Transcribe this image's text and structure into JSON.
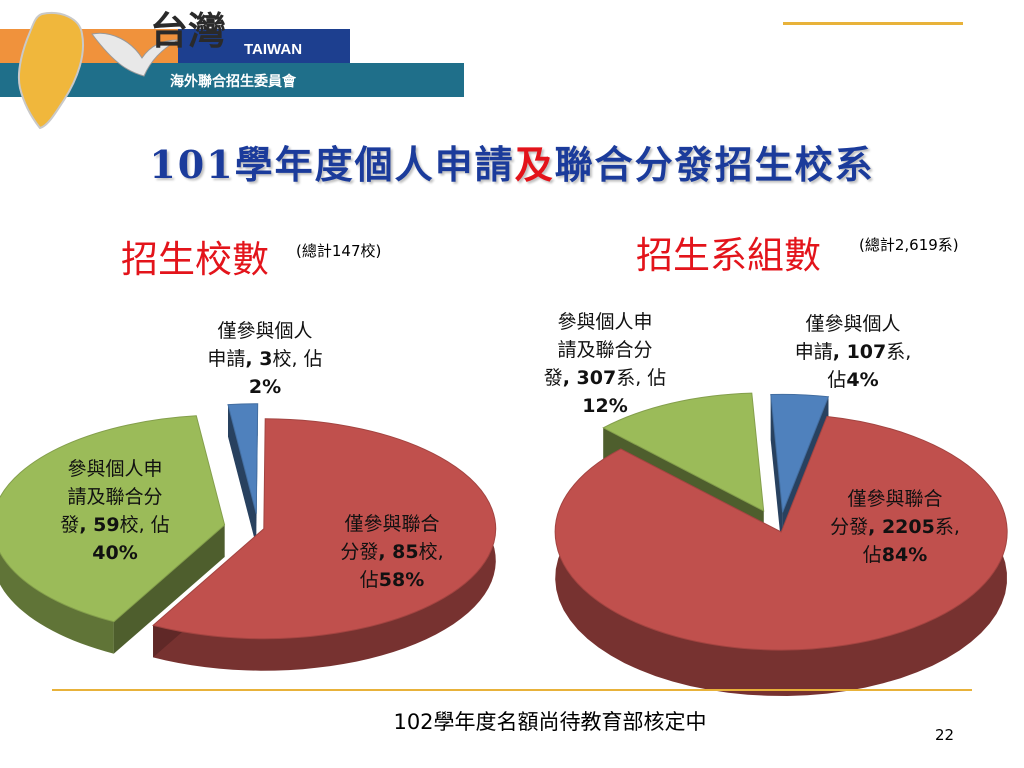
{
  "logo": {
    "brand_script": "台灣",
    "brand_en": "TAIWAN",
    "org_name": "海外聯合招生委員會"
  },
  "title": {
    "part1": "101學年度個人申請",
    "part2": "及",
    "part3": "聯合分發招生校系"
  },
  "colors": {
    "blue": "#4f81bd",
    "red": "#c0504d",
    "green": "#9bbb59",
    "title": "#1b3b9b",
    "accent": "#e3141b",
    "rule": "#e8b23a"
  },
  "chart_data": [
    {
      "type": "pie",
      "title": "招生校數",
      "subtitle": "(總計147校)",
      "slices": [
        {
          "label": "僅參與個人申請",
          "count": "3",
          "unit": "校",
          "percent": "2%",
          "value": 3,
          "color": "#4f81bd"
        },
        {
          "label": "僅參與聯合分發",
          "count": "85",
          "unit": "校",
          "percent": "58%",
          "value": 85,
          "color": "#c0504d"
        },
        {
          "label": "參與個人申請及聯合分發",
          "count": "59",
          "unit": "校",
          "percent": "40%",
          "value": 59,
          "color": "#9bbb59"
        }
      ]
    },
    {
      "type": "pie",
      "title": "招生系組數",
      "subtitle": "(總計2,619系)",
      "slices": [
        {
          "label": "僅參與個人申請",
          "count": "107",
          "unit": "系",
          "percent": "4%",
          "value": 107,
          "color": "#4f81bd"
        },
        {
          "label": "僅參與聯合分發",
          "count": "2205",
          "unit": "系",
          "percent": "84%",
          "value": 2205,
          "color": "#c0504d"
        },
        {
          "label": "參與個人申請及聯合分發",
          "count": "307",
          "unit": "系",
          "percent": "12%",
          "value": 307,
          "color": "#9bbb59"
        }
      ]
    }
  ],
  "labels": {
    "left_blue": {
      "line1": "僅參與個人",
      "line2a": "申請",
      "line2b": "校, 佔",
      "line3": "2%"
    },
    "left_red": {
      "line1": "僅參與聯合",
      "line2a": "分發",
      "line2b": "校,",
      "line3a": "佔"
    },
    "left_green": {
      "line1": "參與個人申",
      "line2": "請及聯合分",
      "line3a": "發",
      "line3b": "校, 佔"
    },
    "right_green": {
      "line1": "參與個人申",
      "line2": "請及聯合分",
      "line3a": "發",
      "line3b": "系, 佔"
    },
    "right_blue": {
      "line1": "僅參與個人",
      "line2a": "申請",
      "line2b": "系,",
      "line3a": "佔"
    },
    "right_red": {
      "line1": "僅參與聯合",
      "line2a": "分發",
      "line2b": "系,",
      "line3a": "佔"
    }
  },
  "footnote": "102學年度名額尚待教育部核定中",
  "page_number": "22"
}
